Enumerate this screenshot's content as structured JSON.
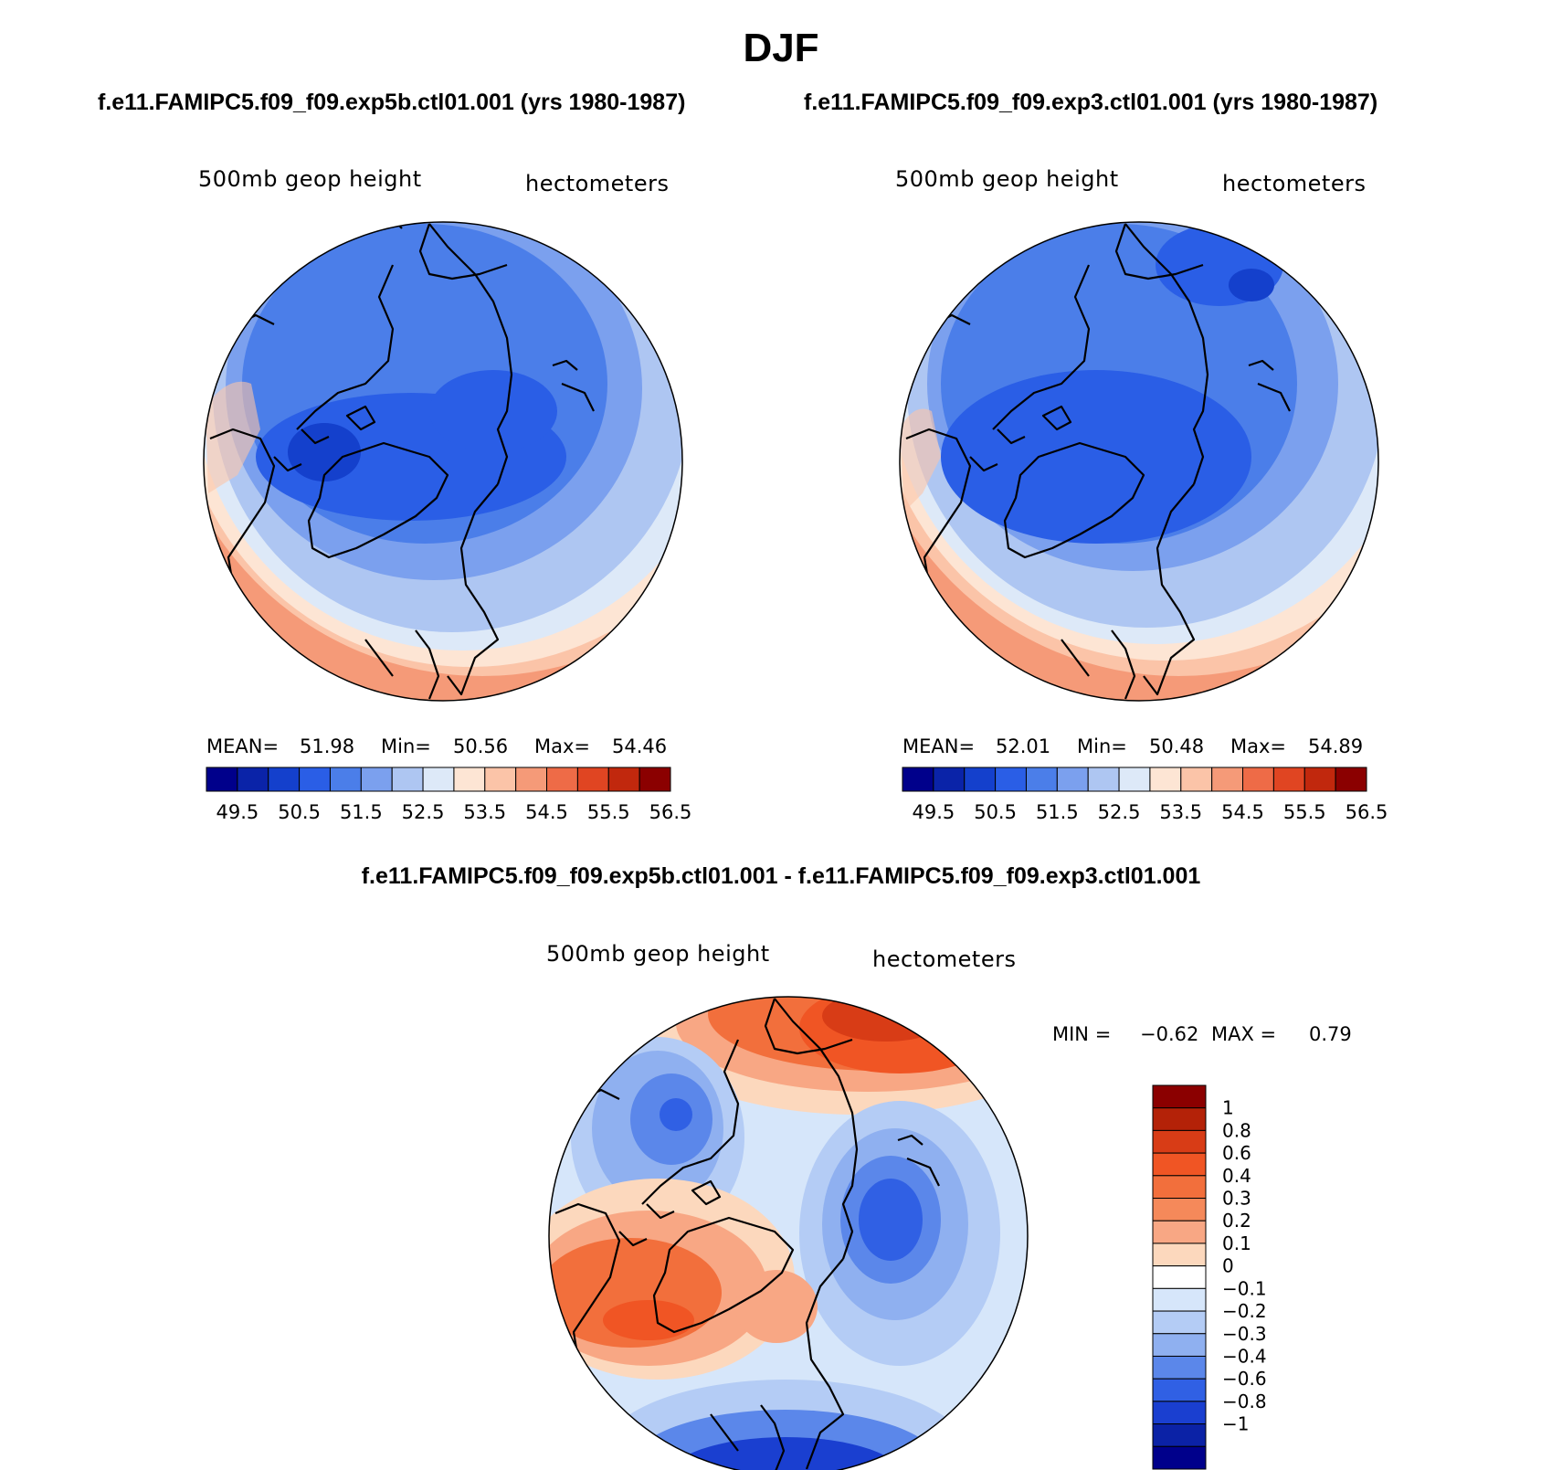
{
  "title": "DJF",
  "panels": [
    {
      "case": "f.e11.FAMIPC5.f09_f09.exp5b.ctl01.001 (yrs 1980-1987)",
      "variable": "500mb geop height",
      "units": "hectometers",
      "stats": {
        "mean_label": "MEAN=",
        "mean": "51.98",
        "min_label": "Min=",
        "min": "50.56",
        "max_label": "Max=",
        "max": "54.46"
      }
    },
    {
      "case": "f.e11.FAMIPC5.f09_f09.exp3.ctl01.001 (yrs 1980-1987)",
      "variable": "500mb geop height",
      "units": "hectometers",
      "stats": {
        "mean_label": "MEAN=",
        "mean": "52.01",
        "min_label": "Min=",
        "min": "50.48",
        "max_label": "Max=",
        "max": "54.89"
      }
    }
  ],
  "horizontal_colorbar": {
    "labels": [
      "49.5",
      "50.5",
      "51.5",
      "52.5",
      "53.5",
      "54.5",
      "55.5",
      "56.5"
    ],
    "colors": [
      "#00008b",
      "#0a23a8",
      "#1440cc",
      "#2a5ee6",
      "#4b7ee9",
      "#7ba0ee",
      "#aec6f2",
      "#dde9f8",
      "#fde5d4",
      "#fbc4a8",
      "#f59a78",
      "#ee6b47",
      "#e04522",
      "#c1280d",
      "#8b0000"
    ]
  },
  "difference": {
    "title": "f.e11.FAMIPC5.f09_f09.exp5b.ctl01.001 - f.e11.FAMIPC5.f09_f09.exp3.ctl01.001",
    "variable": "500mb geop height",
    "units": "hectometers",
    "min_label": "MIN =",
    "min": "−0.62",
    "max_label": "MAX =",
    "max": "0.79",
    "colorbar": {
      "labels": [
        "1",
        "0.8",
        "0.6",
        "0.4",
        "0.3",
        "0.2",
        "0.1",
        "0",
        "−0.1",
        "−0.2",
        "−0.3",
        "−0.4",
        "−0.6",
        "−0.8",
        "−1"
      ],
      "colors": [
        "#8b0000",
        "#b42208",
        "#d83c16",
        "#f05524",
        "#f26f3c",
        "#f5895a",
        "#f8a784",
        "#fcd8bd",
        "#ffffff",
        "#d6e6fa",
        "#b4ccf5",
        "#8fb0f0",
        "#5b87ea",
        "#3060e4",
        "#1a3fd0",
        "#0b22a6",
        "#00008b"
      ]
    }
  }
}
